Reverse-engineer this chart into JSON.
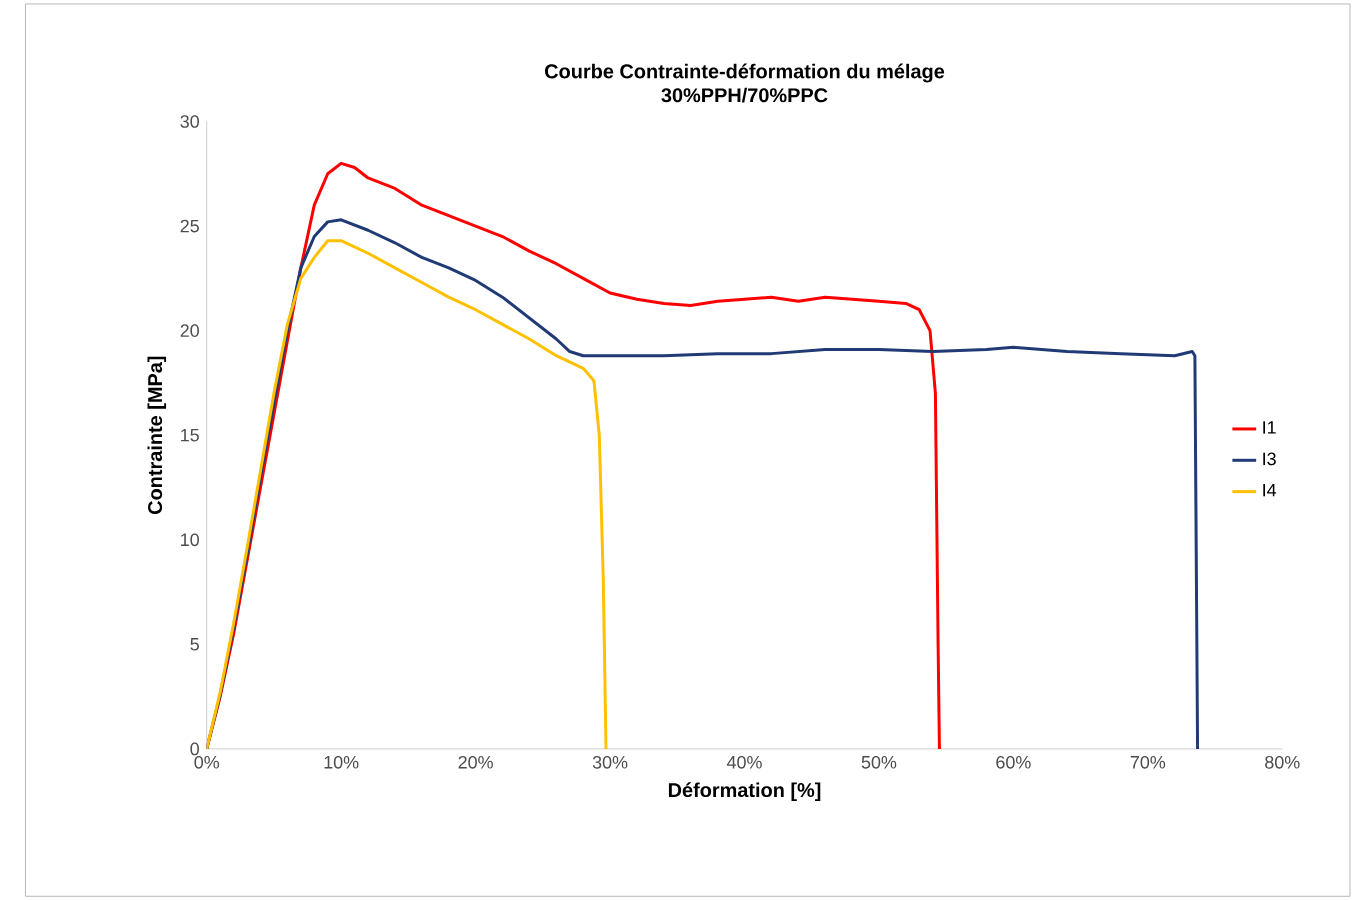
{
  "chart_data": {
    "type": "line",
    "title": "Courbe Contrainte-déformation du mélage\n30%PPH/70%PPC",
    "xlabel": "Déformation [%]",
    "ylabel": "Contrainte [MPa]",
    "xlim": [
      0,
      80
    ],
    "ylim": [
      0,
      30
    ],
    "xticks": [
      {
        "value": 0,
        "label": "0%"
      },
      {
        "value": 10,
        "label": "10%"
      },
      {
        "value": 20,
        "label": "20%"
      },
      {
        "value": 30,
        "label": "30%"
      },
      {
        "value": 40,
        "label": "40%"
      },
      {
        "value": 50,
        "label": "50%"
      },
      {
        "value": 60,
        "label": "60%"
      },
      {
        "value": 70,
        "label": "70%"
      },
      {
        "value": 80,
        "label": "80%"
      }
    ],
    "yticks": [
      0,
      5,
      10,
      15,
      20,
      25,
      30
    ],
    "grid": false,
    "legend": "right",
    "marker": "none",
    "line_style": "solid",
    "series": [
      {
        "name": "I1",
        "color": "#ff0000",
        "x": [
          0,
          1,
          2,
          3,
          4,
          5,
          6,
          7,
          8,
          9,
          10,
          11,
          12,
          14,
          16,
          18,
          20,
          22,
          24,
          26,
          28,
          30,
          32,
          34,
          36,
          38,
          40,
          42,
          44,
          46,
          48,
          50,
          52,
          53,
          53.8,
          54.2,
          54.4,
          54.5
        ],
        "values": [
          0,
          2.5,
          5.5,
          9,
          12.5,
          16,
          19.5,
          23,
          26,
          27.5,
          28,
          27.8,
          27.3,
          26.8,
          26,
          25.5,
          25,
          24.5,
          23.8,
          23.2,
          22.5,
          21.8,
          21.5,
          21.3,
          21.2,
          21.4,
          21.5,
          21.6,
          21.4,
          21.6,
          21.5,
          21.4,
          21.3,
          21,
          20,
          17,
          5,
          0
        ]
      },
      {
        "name": "I3",
        "color": "#1f3a75",
        "x": [
          0,
          1,
          2,
          3,
          4,
          5,
          6,
          7,
          8,
          9,
          10,
          12,
          14,
          16,
          18,
          20,
          22,
          24,
          26,
          27,
          28,
          30,
          34,
          38,
          42,
          46,
          50,
          54,
          58,
          60,
          64,
          68,
          72,
          73.3,
          73.5,
          73.7
        ],
        "values": [
          0,
          2.6,
          5.8,
          9.3,
          13,
          16.5,
          20,
          23,
          24.5,
          25.2,
          25.3,
          24.8,
          24.2,
          23.5,
          23,
          22.4,
          21.6,
          20.6,
          19.6,
          19,
          18.8,
          18.8,
          18.8,
          18.9,
          18.9,
          19.1,
          19.1,
          19,
          19.1,
          19.2,
          19,
          18.9,
          18.8,
          19,
          18.8,
          0
        ]
      },
      {
        "name": "I4",
        "color": "#ffc000",
        "x": [
          0,
          1,
          2,
          3,
          4,
          5,
          6,
          7,
          8,
          9,
          10,
          12,
          14,
          16,
          18,
          20,
          22,
          24,
          26,
          28,
          28.8,
          29.2,
          29.5,
          29.7
        ],
        "values": [
          0,
          2.7,
          6,
          9.6,
          13.3,
          17,
          20.3,
          22.5,
          23.5,
          24.3,
          24.3,
          23.7,
          23,
          22.3,
          21.6,
          21,
          20.3,
          19.6,
          18.8,
          18.2,
          17.6,
          15,
          8,
          0
        ]
      }
    ]
  }
}
